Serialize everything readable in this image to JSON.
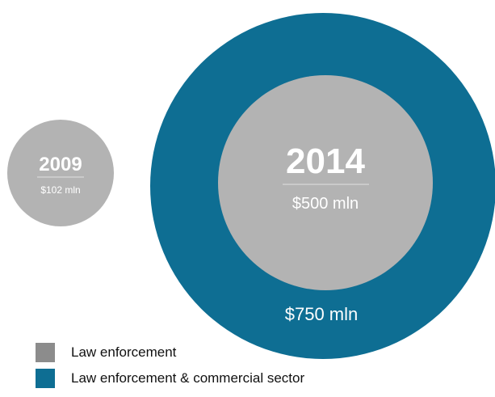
{
  "chart_data": {
    "type": "bubble",
    "bubbles": [
      {
        "label": "2009",
        "value_text": "$102 mln",
        "values": [
          {
            "series": "Law enforcement",
            "value": 102
          }
        ]
      },
      {
        "label": "2014",
        "value_text": "$500 mln",
        "outer_text": "$750 mln",
        "values": [
          {
            "series": "Law enforcement",
            "value": 500
          },
          {
            "series": "Law enforcement & commercial sector",
            "value": 750
          }
        ]
      }
    ],
    "legend": [
      {
        "name": "Law enforcement",
        "color": "#8c8c8c"
      },
      {
        "name": "Law enforcement & commercial sector",
        "color": "#0e6e93"
      }
    ],
    "legend_position": "bottom-left"
  },
  "colors": {
    "gray_bubble": "#b3b3b3",
    "blue_ring": "#0e6e93",
    "text": "#ffffff"
  }
}
